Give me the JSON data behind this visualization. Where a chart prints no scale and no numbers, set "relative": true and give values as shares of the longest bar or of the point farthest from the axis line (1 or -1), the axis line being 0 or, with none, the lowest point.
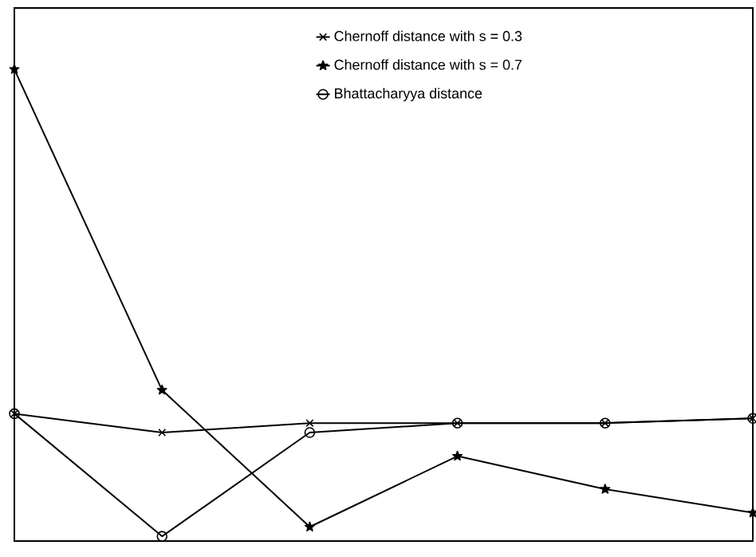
{
  "chart_data": {
    "type": "line",
    "relative": true,
    "categories": [
      null,
      null,
      null,
      null,
      null,
      null
    ],
    "legend": "top",
    "line_style": "solid",
    "series": [
      {
        "name": "Chernoff distance with s = 0.3",
        "color": "#000000",
        "marker": "cross",
        "values": [
          0.27,
          0.23,
          0.25,
          0.25,
          0.25,
          0.26
        ]
      },
      {
        "name": "Chernoff distance with s = 0.7",
        "color": "#000000",
        "marker": "star",
        "values": [
          1,
          0.32,
          0.03,
          0.18,
          0.11,
          0.06
        ]
      },
      {
        "name": "Bhattacharyya distance",
        "color": "#000000",
        "marker": "circle",
        "values": [
          0.27,
          0.01,
          0.23,
          0.25,
          0.25,
          0.26
        ]
      }
    ]
  }
}
